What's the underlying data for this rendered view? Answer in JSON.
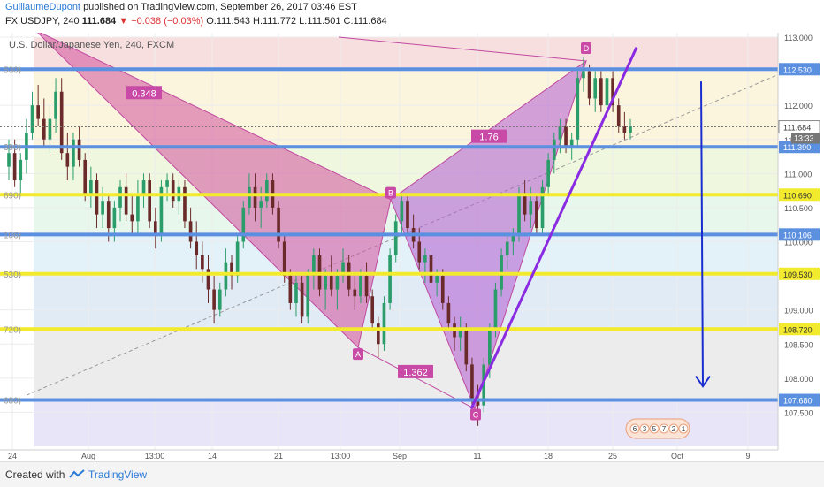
{
  "header": {
    "author": "GuillaumeDupont",
    "published": "published on TradingView.com, September 26, 2017 03:46 EST",
    "symbol_line": "FX:USDJPY, 240",
    "last": "111.684",
    "change": "▼ −0.038 (−0.03%)",
    "ohlc": "O:111.543 H:111.772 L:111.501 C:111.684"
  },
  "footer": {
    "created": "Created with",
    "brand": "TradingView"
  },
  "chart_data": {
    "type": "candlestick",
    "title": "U.S. Dollar/Japanese Yen, 240, FXCM",
    "y_range": [
      107.0,
      113.0
    ],
    "y_ticks": [
      "113.000",
      "112.500",
      "112.000",
      "111.500",
      "111.000",
      "110.500",
      "110.000",
      "109.500",
      "109.000",
      "108.500",
      "108.000",
      "107.500"
    ],
    "x_ticks": [
      "24",
      "Aug",
      "13:00",
      "14",
      "21",
      "13:00",
      "Sep",
      "11",
      "18",
      "25",
      "Oct",
      "9"
    ],
    "horizontal_levels": [
      {
        "price": 112.53,
        "label": "112.530",
        "color": "#5b8fe0"
      },
      {
        "price": 111.39,
        "label": "111.390",
        "color": "#5b8fe0"
      },
      {
        "price": 110.69,
        "label": "110.690",
        "color": "#f2ea2c"
      },
      {
        "price": 110.106,
        "label": "110.106",
        "color": "#5b8fe0"
      },
      {
        "price": 109.53,
        "label": "109.530",
        "color": "#f2ea2c"
      },
      {
        "price": 108.72,
        "label": "108.720",
        "color": "#f2ea2c"
      },
      {
        "price": 107.68,
        "label": "107.680",
        "color": "#5b8fe0"
      }
    ],
    "current_price": {
      "label": "111.684",
      "timer": "13:33"
    },
    "fib_left_labels": [
      "530)",
      "390)",
      "690)",
      "106)",
      "530)",
      "720)",
      "680)"
    ],
    "pattern_points": [
      {
        "name": "D",
        "price": 112.65
      },
      {
        "name": "B",
        "price": 110.62
      },
      {
        "name": "A",
        "price": 108.45
      },
      {
        "name": "C",
        "price": 107.55
      }
    ],
    "ratios": [
      "0.348",
      "1.76",
      "1.362"
    ],
    "indicator_digits": [
      "6",
      "3",
      "5",
      "7",
      "2",
      "1"
    ],
    "candles": [
      {
        "o": 111.1,
        "h": 111.5,
        "l": 110.9,
        "c": 111.3
      },
      {
        "o": 111.3,
        "h": 111.5,
        "l": 110.8,
        "c": 110.9
      },
      {
        "o": 110.9,
        "h": 111.3,
        "l": 110.7,
        "c": 111.2
      },
      {
        "o": 111.2,
        "h": 111.8,
        "l": 111.0,
        "c": 111.6
      },
      {
        "o": 111.6,
        "h": 112.2,
        "l": 111.5,
        "c": 112.0
      },
      {
        "o": 112.0,
        "h": 112.3,
        "l": 111.7,
        "c": 111.8
      },
      {
        "o": 111.8,
        "h": 112.1,
        "l": 111.4,
        "c": 111.5
      },
      {
        "o": 111.5,
        "h": 112.0,
        "l": 111.3,
        "c": 111.8
      },
      {
        "o": 111.8,
        "h": 112.4,
        "l": 111.6,
        "c": 112.2
      },
      {
        "o": 112.2,
        "h": 112.4,
        "l": 111.2,
        "c": 111.3
      },
      {
        "o": 111.3,
        "h": 111.6,
        "l": 110.9,
        "c": 111.1
      },
      {
        "o": 111.1,
        "h": 111.6,
        "l": 110.9,
        "c": 111.5
      },
      {
        "o": 111.5,
        "h": 111.7,
        "l": 111.1,
        "c": 111.2
      },
      {
        "o": 111.2,
        "h": 111.3,
        "l": 110.6,
        "c": 110.7
      },
      {
        "o": 110.7,
        "h": 111.1,
        "l": 110.5,
        "c": 110.9
      },
      {
        "o": 110.9,
        "h": 111.0,
        "l": 110.2,
        "c": 110.4
      },
      {
        "o": 110.4,
        "h": 110.8,
        "l": 110.2,
        "c": 110.6
      },
      {
        "o": 110.6,
        "h": 110.7,
        "l": 110.0,
        "c": 110.2
      },
      {
        "o": 110.2,
        "h": 110.6,
        "l": 110.0,
        "c": 110.5
      },
      {
        "o": 110.5,
        "h": 110.9,
        "l": 110.3,
        "c": 110.8
      },
      {
        "o": 110.8,
        "h": 111.0,
        "l": 110.3,
        "c": 110.4
      },
      {
        "o": 110.4,
        "h": 110.7,
        "l": 110.1,
        "c": 110.3
      },
      {
        "o": 110.3,
        "h": 110.9,
        "l": 110.1,
        "c": 110.7
      },
      {
        "o": 110.7,
        "h": 111.0,
        "l": 110.5,
        "c": 110.9
      },
      {
        "o": 110.9,
        "h": 111.0,
        "l": 110.2,
        "c": 110.3
      },
      {
        "o": 110.3,
        "h": 110.5,
        "l": 109.9,
        "c": 110.1
      },
      {
        "o": 110.1,
        "h": 110.9,
        "l": 110.0,
        "c": 110.8
      },
      {
        "o": 110.8,
        "h": 111.0,
        "l": 110.6,
        "c": 110.9
      },
      {
        "o": 110.9,
        "h": 111.0,
        "l": 110.5,
        "c": 110.6
      },
      {
        "o": 110.6,
        "h": 110.9,
        "l": 110.4,
        "c": 110.8
      },
      {
        "o": 110.8,
        "h": 110.9,
        "l": 110.2,
        "c": 110.3
      },
      {
        "o": 110.3,
        "h": 110.5,
        "l": 109.9,
        "c": 110.0
      },
      {
        "o": 110.0,
        "h": 110.3,
        "l": 109.6,
        "c": 109.8
      },
      {
        "o": 109.8,
        "h": 110.0,
        "l": 109.4,
        "c": 109.6
      },
      {
        "o": 109.6,
        "h": 109.8,
        "l": 109.1,
        "c": 109.3
      },
      {
        "o": 109.3,
        "h": 109.5,
        "l": 108.8,
        "c": 109.0
      },
      {
        "o": 109.0,
        "h": 109.4,
        "l": 108.9,
        "c": 109.3
      },
      {
        "o": 109.3,
        "h": 109.9,
        "l": 109.2,
        "c": 109.7
      },
      {
        "o": 109.7,
        "h": 109.8,
        "l": 109.3,
        "c": 109.5
      },
      {
        "o": 109.5,
        "h": 110.1,
        "l": 109.4,
        "c": 110.0
      },
      {
        "o": 110.0,
        "h": 110.6,
        "l": 109.9,
        "c": 110.5
      },
      {
        "o": 110.5,
        "h": 111.0,
        "l": 110.4,
        "c": 110.8
      },
      {
        "o": 110.8,
        "h": 111.0,
        "l": 110.3,
        "c": 110.5
      },
      {
        "o": 110.5,
        "h": 110.8,
        "l": 110.2,
        "c": 110.6
      },
      {
        "o": 110.6,
        "h": 111.0,
        "l": 110.5,
        "c": 110.9
      },
      {
        "o": 110.9,
        "h": 111.0,
        "l": 110.4,
        "c": 110.5
      },
      {
        "o": 110.5,
        "h": 110.6,
        "l": 109.9,
        "c": 110.0
      },
      {
        "o": 110.0,
        "h": 110.1,
        "l": 109.4,
        "c": 109.5
      },
      {
        "o": 109.5,
        "h": 109.6,
        "l": 109.0,
        "c": 109.1
      },
      {
        "o": 109.1,
        "h": 109.5,
        "l": 108.9,
        "c": 109.4
      },
      {
        "o": 109.4,
        "h": 109.5,
        "l": 108.8,
        "c": 108.9
      },
      {
        "o": 108.9,
        "h": 109.6,
        "l": 108.8,
        "c": 109.5
      },
      {
        "o": 109.5,
        "h": 109.9,
        "l": 109.3,
        "c": 109.8
      },
      {
        "o": 109.8,
        "h": 109.9,
        "l": 109.2,
        "c": 109.3
      },
      {
        "o": 109.3,
        "h": 109.6,
        "l": 109.0,
        "c": 109.5
      },
      {
        "o": 109.5,
        "h": 109.8,
        "l": 109.2,
        "c": 109.3
      },
      {
        "o": 109.3,
        "h": 109.6,
        "l": 109.0,
        "c": 109.5
      },
      {
        "o": 109.5,
        "h": 109.9,
        "l": 109.4,
        "c": 109.7
      },
      {
        "o": 109.7,
        "h": 109.8,
        "l": 109.2,
        "c": 109.3
      },
      {
        "o": 109.3,
        "h": 109.5,
        "l": 109.0,
        "c": 109.2
      },
      {
        "o": 109.2,
        "h": 109.6,
        "l": 109.1,
        "c": 109.5
      },
      {
        "o": 109.5,
        "h": 109.7,
        "l": 109.1,
        "c": 109.2
      },
      {
        "o": 109.2,
        "h": 109.3,
        "l": 108.7,
        "c": 108.8
      },
      {
        "o": 108.8,
        "h": 108.9,
        "l": 108.3,
        "c": 108.5
      },
      {
        "o": 108.5,
        "h": 109.2,
        "l": 108.4,
        "c": 109.1
      },
      {
        "o": 109.1,
        "h": 109.9,
        "l": 109.0,
        "c": 109.8
      },
      {
        "o": 109.8,
        "h": 110.4,
        "l": 109.7,
        "c": 110.3
      },
      {
        "o": 110.3,
        "h": 110.7,
        "l": 110.1,
        "c": 110.6
      },
      {
        "o": 110.6,
        "h": 110.7,
        "l": 110.1,
        "c": 110.2
      },
      {
        "o": 110.2,
        "h": 110.4,
        "l": 109.9,
        "c": 110.0
      },
      {
        "o": 110.0,
        "h": 110.2,
        "l": 109.6,
        "c": 109.7
      },
      {
        "o": 109.7,
        "h": 109.9,
        "l": 109.4,
        "c": 109.8
      },
      {
        "o": 109.8,
        "h": 109.9,
        "l": 109.3,
        "c": 109.4
      },
      {
        "o": 109.4,
        "h": 109.6,
        "l": 109.2,
        "c": 109.5
      },
      {
        "o": 109.5,
        "h": 109.6,
        "l": 109.0,
        "c": 109.1
      },
      {
        "o": 109.1,
        "h": 109.2,
        "l": 108.7,
        "c": 108.8
      },
      {
        "o": 108.8,
        "h": 108.9,
        "l": 108.4,
        "c": 108.6
      },
      {
        "o": 108.6,
        "h": 108.9,
        "l": 108.4,
        "c": 108.7
      },
      {
        "o": 108.7,
        "h": 108.8,
        "l": 108.1,
        "c": 108.2
      },
      {
        "o": 108.2,
        "h": 108.3,
        "l": 107.6,
        "c": 107.7
      },
      {
        "o": 107.7,
        "h": 107.9,
        "l": 107.3,
        "c": 107.6
      },
      {
        "o": 107.6,
        "h": 108.3,
        "l": 107.5,
        "c": 108.2
      },
      {
        "o": 108.2,
        "h": 108.8,
        "l": 108.0,
        "c": 108.7
      },
      {
        "o": 108.7,
        "h": 109.4,
        "l": 108.6,
        "c": 109.3
      },
      {
        "o": 109.3,
        "h": 109.9,
        "l": 109.2,
        "c": 109.8
      },
      {
        "o": 109.8,
        "h": 110.1,
        "l": 109.6,
        "c": 110.0
      },
      {
        "o": 110.0,
        "h": 110.2,
        "l": 109.8,
        "c": 110.1
      },
      {
        "o": 110.1,
        "h": 110.8,
        "l": 110.0,
        "c": 110.7
      },
      {
        "o": 110.7,
        "h": 110.9,
        "l": 110.3,
        "c": 110.4
      },
      {
        "o": 110.4,
        "h": 110.8,
        "l": 110.2,
        "c": 110.6
      },
      {
        "o": 110.6,
        "h": 110.7,
        "l": 110.1,
        "c": 110.2
      },
      {
        "o": 110.2,
        "h": 110.9,
        "l": 110.1,
        "c": 110.8
      },
      {
        "o": 110.8,
        "h": 111.3,
        "l": 110.7,
        "c": 111.2
      },
      {
        "o": 111.2,
        "h": 111.6,
        "l": 111.0,
        "c": 111.5
      },
      {
        "o": 111.5,
        "h": 111.8,
        "l": 111.3,
        "c": 111.7
      },
      {
        "o": 111.7,
        "h": 111.8,
        "l": 111.3,
        "c": 111.4
      },
      {
        "o": 111.4,
        "h": 111.6,
        "l": 111.2,
        "c": 111.5
      },
      {
        "o": 111.5,
        "h": 112.5,
        "l": 111.4,
        "c": 112.4
      },
      {
        "o": 112.4,
        "h": 112.7,
        "l": 112.2,
        "c": 112.5
      },
      {
        "o": 112.5,
        "h": 112.6,
        "l": 112.0,
        "c": 112.1
      },
      {
        "o": 112.1,
        "h": 112.5,
        "l": 111.9,
        "c": 112.4
      },
      {
        "o": 112.4,
        "h": 112.5,
        "l": 111.9,
        "c": 112.0
      },
      {
        "o": 112.0,
        "h": 112.5,
        "l": 111.8,
        "c": 112.4
      },
      {
        "o": 112.4,
        "h": 112.5,
        "l": 111.9,
        "c": 112.0
      },
      {
        "o": 112.0,
        "h": 112.1,
        "l": 111.6,
        "c": 111.7
      },
      {
        "o": 111.7,
        "h": 111.9,
        "l": 111.5,
        "c": 111.6
      },
      {
        "o": 111.6,
        "h": 111.8,
        "l": 111.5,
        "c": 111.7
      }
    ]
  }
}
